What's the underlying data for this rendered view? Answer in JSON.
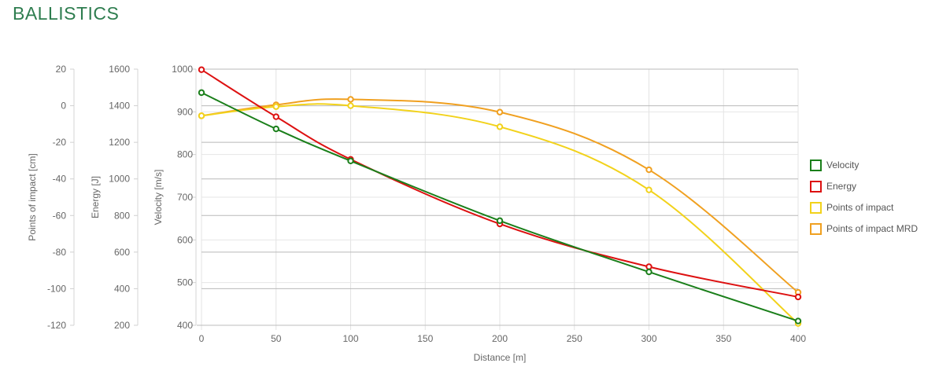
{
  "page": {
    "title": "BALLISTICS"
  },
  "chart_data": {
    "type": "line",
    "x": [
      0,
      50,
      100,
      200,
      300,
      400
    ],
    "xlabel": "Distance [m]",
    "xlim": [
      0,
      400
    ],
    "xticks": [
      "0",
      "50",
      "100",
      "150",
      "200",
      "250",
      "300",
      "350",
      "400"
    ],
    "grid": true,
    "legend_position": "right",
    "axes": {
      "velocity": {
        "label": "Velocity [m/s]",
        "range": [
          400,
          1000
        ],
        "ticks": [
          "400",
          "500",
          "600",
          "700",
          "800",
          "900",
          "1000"
        ]
      },
      "energy": {
        "label": "Energy [J]",
        "range": [
          200,
          1600
        ],
        "ticks": [
          "200",
          "400",
          "600",
          "800",
          "1000",
          "1200",
          "1400",
          "1600"
        ]
      },
      "poi": {
        "label": "Points of impact [cm]",
        "range": [
          -120,
          20
        ],
        "ticks": [
          "-120",
          "-100",
          "-80",
          "-60",
          "-40",
          "-20",
          "0",
          "20"
        ]
      }
    },
    "series": [
      {
        "name": "Velocity",
        "axis": "velocity",
        "color": "#1a7f1a",
        "values": [
          945,
          860,
          785,
          645,
          525,
          410
        ]
      },
      {
        "name": "Energy",
        "axis": "energy",
        "color": "#dd1111",
        "values": [
          1597,
          1340,
          1107,
          754,
          520,
          355
        ]
      },
      {
        "name": "Points of impact",
        "axis": "poi",
        "color": "#f2d21b",
        "values": [
          -5.5,
          -0.5,
          0,
          -11.5,
          -46,
          -119
        ]
      },
      {
        "name": "Points of impact MRD",
        "axis": "poi",
        "color": "#f0a020",
        "values": [
          -5.5,
          0.5,
          3.5,
          -3.5,
          -35,
          -102
        ]
      }
    ]
  }
}
